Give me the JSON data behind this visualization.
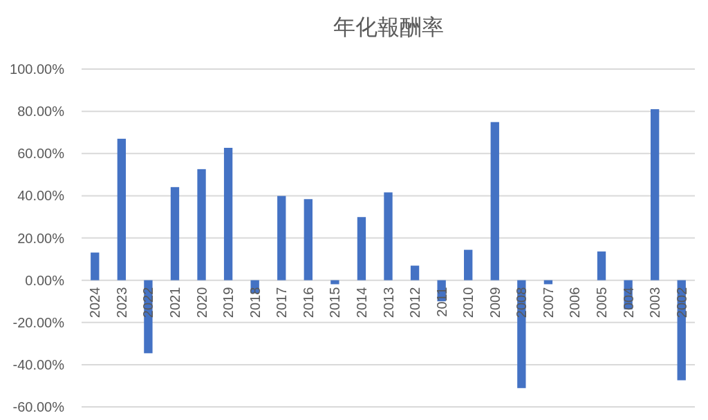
{
  "chart_data": {
    "type": "bar",
    "title": "年化報酬率",
    "categories": [
      "2024",
      "2023",
      "2022",
      "2021",
      "2020",
      "2019",
      "2018",
      "2017",
      "2016",
      "2015",
      "2014",
      "2013",
      "2012",
      "2011",
      "2010",
      "2009",
      "2008",
      "2007",
      "2006",
      "2005",
      "2004",
      "2003",
      "2002"
    ],
    "values": [
      13.1,
      67.0,
      -34.6,
      44.1,
      52.6,
      62.7,
      -6.2,
      39.9,
      38.4,
      -1.9,
      29.9,
      41.6,
      6.9,
      -10.0,
      14.4,
      74.9,
      -51.1,
      -1.9,
      0,
      13.6,
      -13.8,
      81.0,
      -47.4
    ],
    "color": "#4472c4",
    "ylim": [
      -60,
      100
    ],
    "yticks": [
      {
        "value": -60,
        "label": "-60.00%"
      },
      {
        "value": -40,
        "label": "-40.00%"
      },
      {
        "value": -20,
        "label": "-20.00%"
      },
      {
        "value": 0,
        "label": "0.00%"
      },
      {
        "value": 20,
        "label": "20.00%"
      },
      {
        "value": 40,
        "label": "40.00%"
      },
      {
        "value": 60,
        "label": "60.00%"
      },
      {
        "value": 80,
        "label": "80.00%"
      },
      {
        "value": 100,
        "label": "100.00%"
      }
    ],
    "grid": "y"
  }
}
